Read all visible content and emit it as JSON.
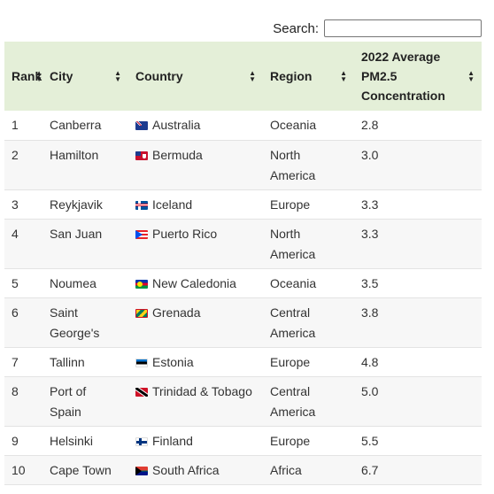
{
  "search": {
    "label": "Search:",
    "value": ""
  },
  "table": {
    "headers": {
      "rank": "Rank",
      "city": "City",
      "country": "Country",
      "region": "Region",
      "pm_line1": "2022 Average",
      "pm_line2": "PM2.5",
      "pm_line3": "Concentration"
    },
    "sort_icon": "sort-arrows",
    "rows": [
      {
        "rank": "1",
        "city": "Canberra",
        "country": "Australia",
        "flag": "australia-flag",
        "region": "Oceania",
        "pm": "2.8"
      },
      {
        "rank": "2",
        "city": "Hamilton",
        "country": "Bermuda",
        "flag": "bermuda-flag",
        "region_l1": "North",
        "region_l2": "America",
        "pm": "3.0"
      },
      {
        "rank": "3",
        "city": "Reykjavik",
        "country": "Iceland",
        "flag": "iceland-flag",
        "region": "Europe",
        "pm": "3.3"
      },
      {
        "rank": "4",
        "city": "San Juan",
        "country": "Puerto Rico",
        "flag": "puerto-rico-flag",
        "region_l1": "North",
        "region_l2": "America",
        "pm": "3.3"
      },
      {
        "rank": "5",
        "city": "Noumea",
        "country": "New Caledonia",
        "flag": "new-caledonia-flag",
        "region": "Oceania",
        "pm": "3.5"
      },
      {
        "rank": "6",
        "city_l1": "Saint",
        "city_l2": "George's",
        "country": "Grenada",
        "flag": "grenada-flag",
        "region_l1": "Central",
        "region_l2": "America",
        "pm": "3.8"
      },
      {
        "rank": "7",
        "city": "Tallinn",
        "country": "Estonia",
        "flag": "estonia-flag",
        "region": "Europe",
        "pm": "4.8"
      },
      {
        "rank": "8",
        "city_l1": "Port of",
        "city_l2": "Spain",
        "country": "Trinidad & Tobago",
        "flag": "trinidad-tobago-flag",
        "region_l1": "Central",
        "region_l2": "America",
        "pm": "5.0"
      },
      {
        "rank": "9",
        "city": "Helsinki",
        "country": "Finland",
        "flag": "finland-flag",
        "region": "Europe",
        "pm": "5.5"
      },
      {
        "rank": "10",
        "city": "Cape Town",
        "country": "South Africa",
        "flag": "south-africa-flag",
        "region": "Africa",
        "pm": "6.7"
      }
    ]
  }
}
